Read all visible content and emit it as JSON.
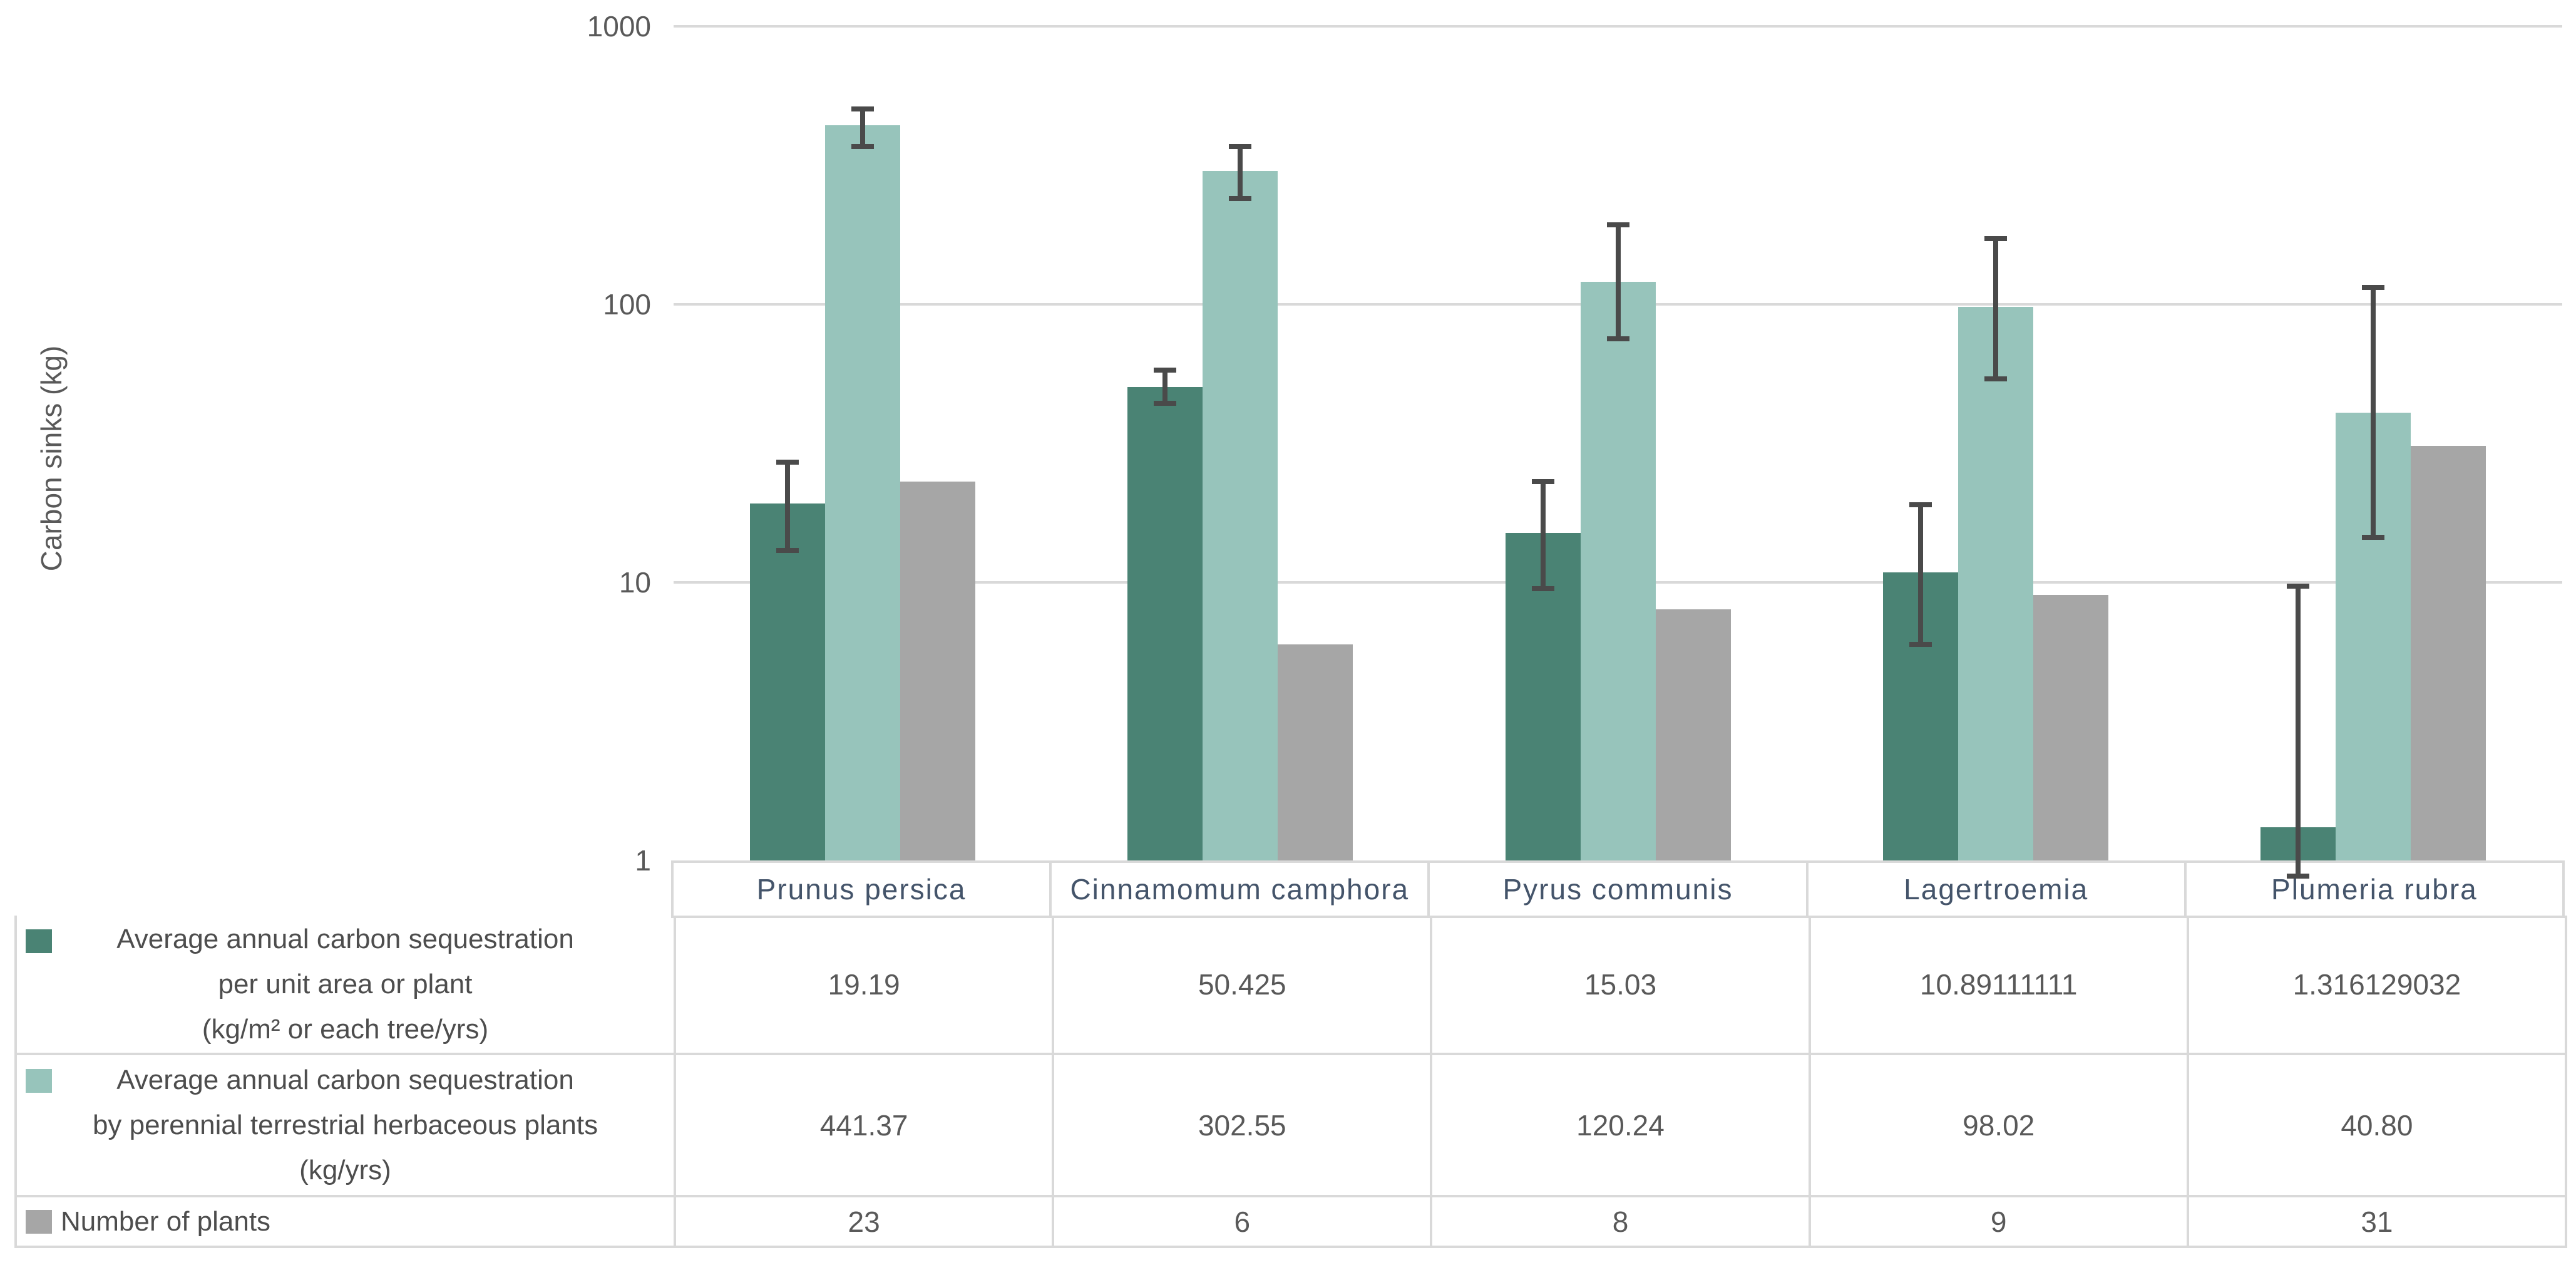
{
  "chart_data": {
    "type": "bar",
    "yscale": "log",
    "title": "",
    "ylabel": "Carbon sinks (kg)",
    "xlabel": "",
    "ylim": [
      1,
      1000
    ],
    "yticks": [
      "1000",
      "100",
      "10",
      "1"
    ],
    "grid": true,
    "legend_position": "attached data table, left column",
    "categories": [
      "Prunus persica",
      "Cinnamomum camphora",
      "Pyrus communis",
      "Lagertroemia",
      "Plumeria rubra"
    ],
    "series": [
      {
        "name": "Average annual carbon sequestration per unit area or plant (kg/m² or each tree/yrs)",
        "color": "#4A8374",
        "values": [
          19.19,
          50.425,
          15.03,
          10.89111111,
          1.316129032
        ],
        "error_low": [
          13,
          44,
          9.5,
          6,
          0.88
        ],
        "error_high": [
          27,
          58,
          23,
          19,
          9.7
        ]
      },
      {
        "name": "Average annual carbon sequestration by perennial terrestrial herbaceous plants (kg/yrs)",
        "color": "#97C4BB",
        "values": [
          441.37,
          302.55,
          120.24,
          98.02,
          40.8
        ],
        "error_low": [
          370,
          240,
          75,
          54,
          14.5
        ],
        "error_high": [
          505,
          370,
          193,
          172,
          115
        ]
      },
      {
        "name": "Number of plants",
        "color": "#A6A6A6",
        "values": [
          23,
          6,
          8,
          9,
          31
        ],
        "error_low": null,
        "error_high": null
      }
    ]
  },
  "table": {
    "row_headers": [
      {
        "swatch_color": "#4A8374",
        "lines": [
          "Average annual carbon sequestration",
          "per unit area or plant",
          "(kg/m² or each tree/yrs)"
        ]
      },
      {
        "swatch_color": "#97C4BB",
        "lines": [
          "Average annual carbon sequestration",
          "by perennial terrestrial herbaceous plants",
          "(kg/yrs)"
        ]
      },
      {
        "swatch_color": "#A6A6A6",
        "lines": [
          "Number of plants"
        ]
      }
    ],
    "display_rows": [
      [
        "19.19",
        "50.425",
        "15.03",
        "10.89111111",
        "1.316129032"
      ],
      [
        "441.37",
        "302.55",
        "120.24",
        "98.02",
        "40.80"
      ],
      [
        "23",
        "6",
        "8",
        "9",
        "31"
      ]
    ]
  },
  "colors": {
    "series1": "#4A8374",
    "series2": "#97C4BB",
    "series3": "#A6A6A6",
    "gridline": "#D9D9D9",
    "table_border": "#D9D9D9",
    "axis_text": "#595959",
    "category_text": "#44546A",
    "legend_text": "#4D4D4D",
    "error_bar": "#4A4A4A",
    "background": "#FFFFFF"
  }
}
